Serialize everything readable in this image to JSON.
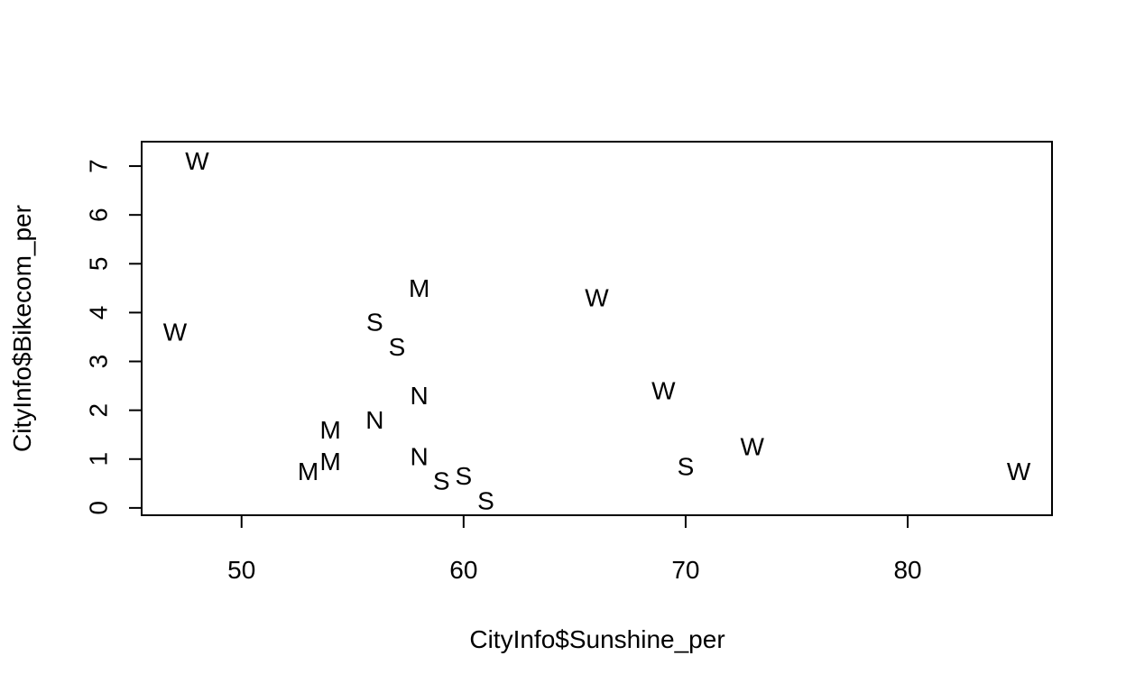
{
  "chart_data": {
    "type": "scatter",
    "title": "",
    "xlabel": "CityInfo$Sunshine_per",
    "ylabel": "CityInfo$Bikecom_per",
    "xlim": [
      45.5,
      86.5
    ],
    "ylim": [
      -0.15,
      7.5
    ],
    "x_ticks": [
      50,
      60,
      70,
      80
    ],
    "y_ticks": [
      0,
      1,
      2,
      3,
      4,
      5,
      6,
      7
    ],
    "grid": false,
    "legend": "none",
    "point_color": "#000000",
    "points": [
      {
        "x": 48,
        "y": 7.1,
        "label": "W"
      },
      {
        "x": 47,
        "y": 3.6,
        "label": "W"
      },
      {
        "x": 58,
        "y": 4.5,
        "label": "M"
      },
      {
        "x": 66,
        "y": 4.3,
        "label": "W"
      },
      {
        "x": 56,
        "y": 3.8,
        "label": "S"
      },
      {
        "x": 57,
        "y": 3.3,
        "label": "S"
      },
      {
        "x": 58,
        "y": 2.3,
        "label": "N"
      },
      {
        "x": 69,
        "y": 2.4,
        "label": "W"
      },
      {
        "x": 56,
        "y": 1.8,
        "label": "N"
      },
      {
        "x": 54,
        "y": 1.6,
        "label": "M"
      },
      {
        "x": 54,
        "y": 0.95,
        "label": "M"
      },
      {
        "x": 53,
        "y": 0.75,
        "label": "M"
      },
      {
        "x": 58,
        "y": 1.05,
        "label": "N"
      },
      {
        "x": 59,
        "y": 0.55,
        "label": "S"
      },
      {
        "x": 60,
        "y": 0.65,
        "label": "S"
      },
      {
        "x": 61,
        "y": 0.15,
        "label": "S"
      },
      {
        "x": 70,
        "y": 0.85,
        "label": "S"
      },
      {
        "x": 73,
        "y": 1.25,
        "label": "W"
      },
      {
        "x": 85,
        "y": 0.75,
        "label": "W"
      }
    ]
  }
}
